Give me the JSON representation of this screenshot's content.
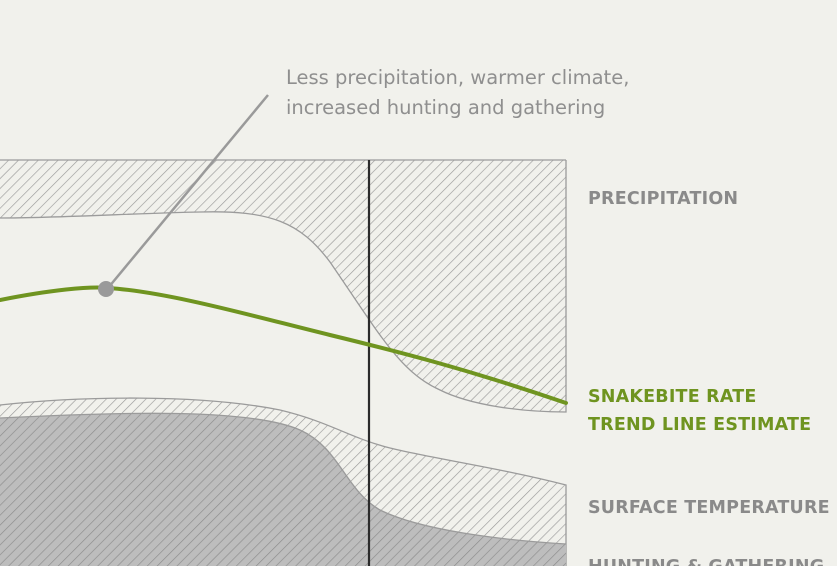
{
  "annotation": {
    "line1": "Less precipitation, warmer climate,",
    "line2": "increased hunting and gathering"
  },
  "labels": {
    "precipitation": "PRECIPITATION",
    "trend_line1": "SNAKEBITE RATE",
    "trend_line2": "TREND LINE ESTIMATE",
    "surface_temperature": "SURFACE TEMPERATURE",
    "hunting_gathering": "HUNTING & GATHERING"
  },
  "colors": {
    "background": "#f1f1ec",
    "hatch_stroke": "#9a9a9a",
    "band_outline": "#9b9b9b",
    "solid_gray": "#bdbdbd",
    "trend_green": "#6f9420",
    "divider": "#2b2b2b",
    "marker": "#9a9a9a"
  }
}
